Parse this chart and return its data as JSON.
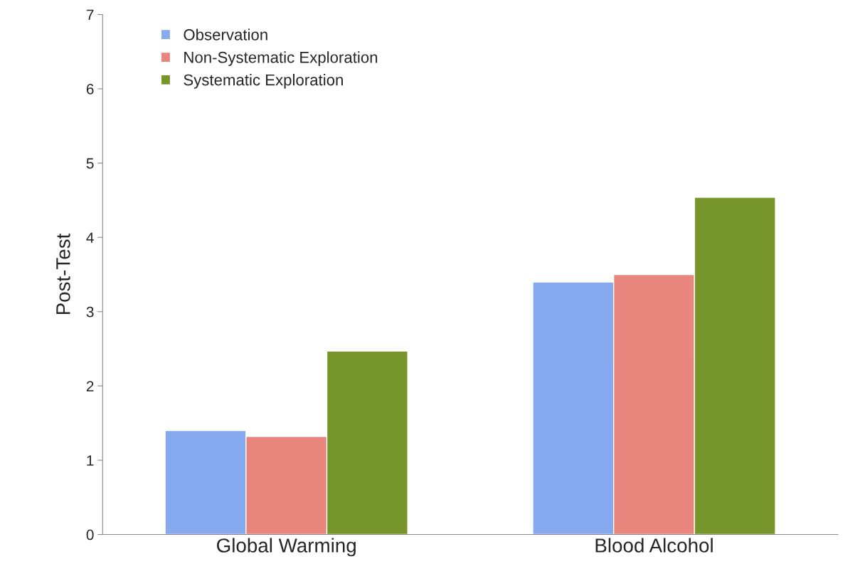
{
  "chart_data": {
    "type": "bar",
    "ylabel": "Post-Test",
    "categories": [
      "Global Warming",
      "Blood Alcohol"
    ],
    "series": [
      {
        "name": "Observation",
        "color": "#86a9ef",
        "values": [
          1.4,
          3.4
        ]
      },
      {
        "name": "Non-Systematic Exploration",
        "color": "#e8857c",
        "values": [
          1.32,
          3.5
        ]
      },
      {
        "name": "Systematic Exploration",
        "color": "#76962b",
        "values": [
          2.47,
          4.54
        ]
      }
    ],
    "ylim": [
      0,
      7
    ],
    "yticks": [
      0,
      1,
      2,
      3,
      4,
      5,
      6,
      7
    ],
    "grid": false,
    "legend": "top left"
  }
}
